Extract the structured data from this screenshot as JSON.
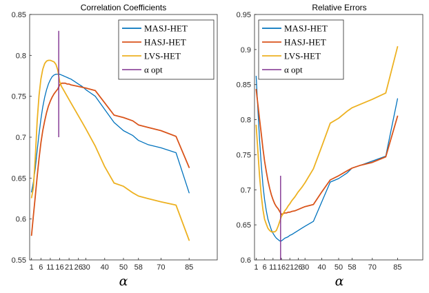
{
  "chart_data": [
    {
      "type": "line",
      "title": "Correlation Coefficients",
      "xlabel": "α",
      "ylabel": "",
      "x_ticks": [
        "1",
        "6",
        "11",
        "16",
        "21",
        "26",
        "30",
        "40",
        "50",
        "58",
        "70",
        "85"
      ],
      "ylim": [
        0.55,
        0.85
      ],
      "yticks": [
        "0.55",
        "0.6",
        "0.65",
        "0.7",
        "0.75",
        "0.8",
        "0.85"
      ],
      "legend_position": "top-right",
      "series": [
        {
          "name": "MASJ-HET",
          "color": "#0072BD",
          "x": [
            1,
            2,
            3,
            4,
            5,
            6,
            7,
            8,
            9,
            10,
            11,
            12,
            13,
            14,
            15,
            16,
            17,
            18,
            19,
            20,
            21,
            22,
            24,
            26,
            28,
            30,
            35,
            40,
            45,
            50,
            55,
            58,
            63,
            70,
            78,
            85
          ],
          "values": [
            0.633,
            0.645,
            0.662,
            0.684,
            0.704,
            0.722,
            0.737,
            0.749,
            0.758,
            0.765,
            0.77,
            0.774,
            0.776,
            0.777,
            0.777,
            0.777,
            0.776,
            0.775,
            0.774,
            0.773,
            0.772,
            0.771,
            0.768,
            0.765,
            0.762,
            0.758,
            0.75,
            0.734,
            0.718,
            0.708,
            0.702,
            0.696,
            0.691,
            0.687,
            0.681,
            0.632
          ]
        },
        {
          "name": "HASJ-HET",
          "color": "#D95319",
          "x": [
            1,
            2,
            3,
            4,
            5,
            6,
            7,
            8,
            9,
            10,
            11,
            12,
            13,
            14,
            15,
            16,
            17,
            18,
            19,
            20,
            21,
            22,
            24,
            26,
            28,
            30,
            35,
            40,
            45,
            50,
            55,
            58,
            63,
            70,
            78,
            85
          ],
          "values": [
            0.58,
            0.604,
            0.628,
            0.652,
            0.674,
            0.693,
            0.708,
            0.72,
            0.73,
            0.738,
            0.744,
            0.749,
            0.753,
            0.756,
            0.759,
            0.764,
            0.766,
            0.766,
            0.766,
            0.765,
            0.765,
            0.764,
            0.763,
            0.762,
            0.761,
            0.76,
            0.757,
            0.742,
            0.727,
            0.724,
            0.72,
            0.715,
            0.712,
            0.708,
            0.701,
            0.663
          ]
        },
        {
          "name": "LVS-HET",
          "color": "#EDB120",
          "x": [
            1,
            2,
            3,
            4,
            5,
            6,
            7,
            8,
            9,
            10,
            11,
            12,
            13,
            14,
            15,
            16,
            17,
            18,
            19,
            20,
            21,
            22,
            24,
            26,
            28,
            30,
            35,
            40,
            45,
            50,
            55,
            58,
            63,
            70,
            78,
            85
          ],
          "values": [
            0.626,
            0.638,
            0.676,
            0.72,
            0.751,
            0.771,
            0.783,
            0.79,
            0.793,
            0.794,
            0.794,
            0.793,
            0.792,
            0.789,
            0.782,
            0.768,
            0.762,
            0.758,
            0.754,
            0.75,
            0.746,
            0.742,
            0.734,
            0.726,
            0.718,
            0.71,
            0.689,
            0.664,
            0.644,
            0.64,
            0.632,
            0.628,
            0.625,
            0.621,
            0.617,
            0.574
          ]
        },
        {
          "name": "α opt",
          "color": "#7E2F8E",
          "type": "vline",
          "x": 15.5,
          "values": [
            0.7,
            0.83
          ]
        }
      ]
    },
    {
      "type": "line",
      "title": "Relative Errors",
      "xlabel": "α",
      "ylabel": "",
      "x_ticks": [
        "1",
        "6",
        "11",
        "16",
        "21",
        "26",
        "30",
        "40",
        "50",
        "58",
        "70",
        "85"
      ],
      "ylim": [
        0.6,
        0.95
      ],
      "yticks": [
        "0.6",
        "0.65",
        "0.7",
        "0.75",
        "0.8",
        "0.85",
        "0.9",
        "0.95"
      ],
      "legend_position": "top-left",
      "series": [
        {
          "name": "MASJ-HET",
          "color": "#0072BD",
          "x": [
            1,
            2,
            3,
            4,
            5,
            6,
            7,
            8,
            9,
            10,
            11,
            12,
            13,
            14,
            15,
            16,
            17,
            18,
            19,
            20,
            21,
            22,
            24,
            26,
            28,
            30,
            35,
            40,
            45,
            50,
            55,
            58,
            63,
            70,
            78,
            85
          ],
          "values": [
            0.862,
            0.815,
            0.772,
            0.736,
            0.707,
            0.686,
            0.67,
            0.658,
            0.65,
            0.643,
            0.638,
            0.634,
            0.631,
            0.629,
            0.627,
            0.627,
            0.629,
            0.631,
            0.632,
            0.633,
            0.635,
            0.636,
            0.639,
            0.642,
            0.645,
            0.648,
            0.655,
            0.683,
            0.711,
            0.716,
            0.724,
            0.731,
            0.735,
            0.741,
            0.748,
            0.83
          ]
        },
        {
          "name": "HASJ-HET",
          "color": "#D95319",
          "x": [
            1,
            2,
            3,
            4,
            5,
            6,
            7,
            8,
            9,
            10,
            11,
            12,
            13,
            14,
            15,
            16,
            17,
            18,
            19,
            20,
            21,
            22,
            24,
            26,
            28,
            30,
            35,
            40,
            45,
            50,
            55,
            58,
            63,
            70,
            78,
            85
          ],
          "values": [
            0.843,
            0.822,
            0.801,
            0.78,
            0.759,
            0.741,
            0.726,
            0.713,
            0.702,
            0.693,
            0.686,
            0.68,
            0.676,
            0.673,
            0.669,
            0.665,
            0.666,
            0.667,
            0.667,
            0.668,
            0.668,
            0.669,
            0.67,
            0.672,
            0.674,
            0.676,
            0.679,
            0.697,
            0.714,
            0.72,
            0.727,
            0.731,
            0.735,
            0.739,
            0.747,
            0.805
          ]
        },
        {
          "name": "LVS-HET",
          "color": "#EDB120",
          "x": [
            1,
            2,
            3,
            4,
            5,
            6,
            7,
            8,
            9,
            10,
            11,
            12,
            13,
            14,
            15,
            16,
            17,
            18,
            19,
            20,
            21,
            22,
            24,
            26,
            28,
            30,
            35,
            40,
            45,
            50,
            55,
            58,
            63,
            70,
            78,
            85
          ],
          "values": [
            0.792,
            0.755,
            0.72,
            0.692,
            0.672,
            0.658,
            0.651,
            0.645,
            0.642,
            0.64,
            0.64,
            0.64,
            0.642,
            0.648,
            0.655,
            0.662,
            0.666,
            0.67,
            0.673,
            0.677,
            0.68,
            0.684,
            0.69,
            0.697,
            0.703,
            0.71,
            0.73,
            0.762,
            0.795,
            0.802,
            0.812,
            0.817,
            0.822,
            0.829,
            0.838,
            0.904
          ]
        },
        {
          "name": "α opt",
          "color": "#7E2F8E",
          "type": "vline",
          "x": 15.5,
          "values": [
            0.6,
            0.72
          ]
        }
      ]
    }
  ]
}
